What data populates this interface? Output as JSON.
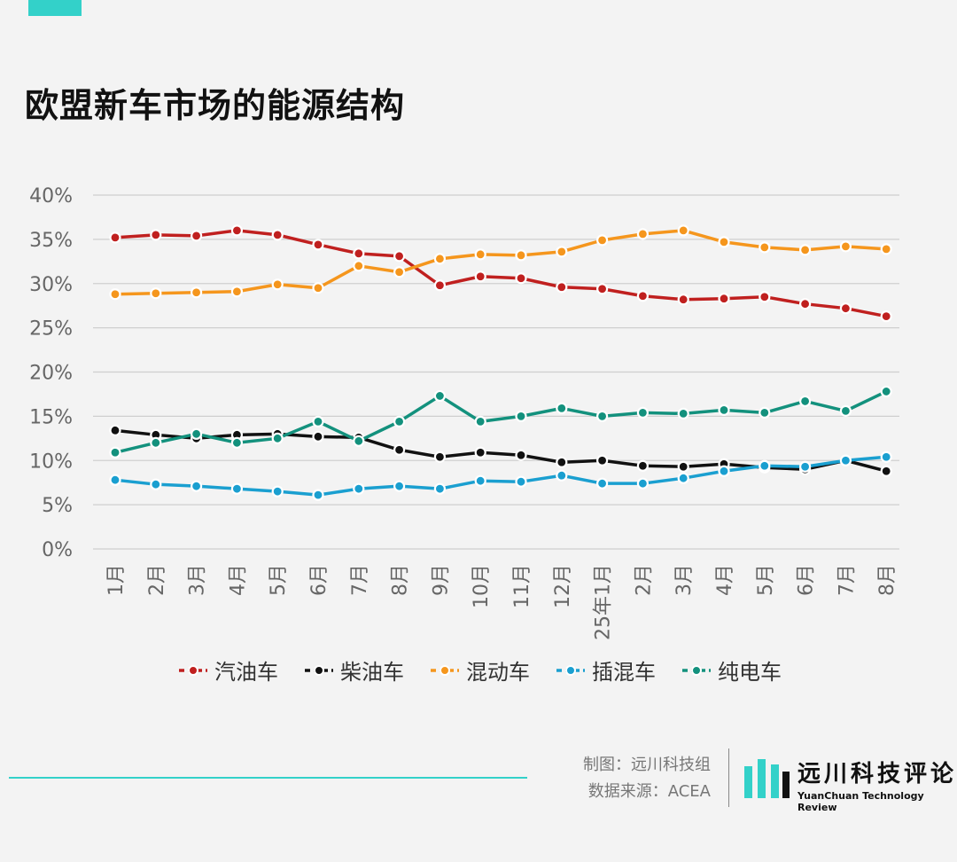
{
  "header": {
    "title": "欧盟新车市场的能源结构"
  },
  "credits": {
    "made_by": "制图：远川科技组",
    "source": "数据来源：ACEA"
  },
  "brand": {
    "name_cn": "远川科技评论",
    "name_en": "YuanChuan Technology Review",
    "accent": "#33d1c9"
  },
  "chart_data": {
    "type": "line",
    "title": "欧盟新车市场的能源结构",
    "categories": [
      "1月",
      "2月",
      "3月",
      "4月",
      "5月",
      "6月",
      "7月",
      "8月",
      "9月",
      "10月",
      "11月",
      "12月",
      "25年1月",
      "2月",
      "3月",
      "4月",
      "5月",
      "6月",
      "7月",
      "8月"
    ],
    "y_ticks": [
      "0%",
      "5%",
      "10%",
      "15%",
      "20%",
      "25%",
      "30%",
      "35%",
      "40%"
    ],
    "ylim": [
      0,
      40
    ],
    "grid": true,
    "legend_position": "bottom",
    "series": [
      {
        "name": "汽油车",
        "color": "#c0201f",
        "values": [
          35.2,
          35.5,
          35.4,
          36.0,
          35.5,
          34.4,
          33.4,
          33.1,
          29.8,
          30.8,
          30.6,
          29.6,
          29.4,
          28.6,
          28.2,
          28.3,
          28.5,
          27.7,
          27.2,
          26.3
        ]
      },
      {
        "name": "柴油车",
        "color": "#111111",
        "values": [
          13.4,
          12.9,
          12.5,
          12.9,
          13.0,
          12.7,
          12.6,
          11.2,
          10.4,
          10.9,
          10.6,
          9.8,
          10.0,
          9.4,
          9.3,
          9.6,
          9.2,
          9.0,
          10.0,
          8.8
        ]
      },
      {
        "name": "混动车",
        "color": "#f5961d",
        "values": [
          28.8,
          28.9,
          29.0,
          29.1,
          29.9,
          29.5,
          32.0,
          31.3,
          32.8,
          33.3,
          33.2,
          33.6,
          34.9,
          35.6,
          36.0,
          34.7,
          34.1,
          33.8,
          34.2,
          33.9
        ]
      },
      {
        "name": "插混车",
        "color": "#1a9fd0",
        "values": [
          7.8,
          7.3,
          7.1,
          6.8,
          6.5,
          6.1,
          6.8,
          7.1,
          6.8,
          7.7,
          7.6,
          8.3,
          7.4,
          7.4,
          8.0,
          8.8,
          9.4,
          9.3,
          10.0,
          10.4
        ]
      },
      {
        "name": "纯电车",
        "color": "#13917d",
        "values": [
          10.9,
          12.0,
          13.0,
          12.0,
          12.5,
          14.4,
          12.2,
          14.4,
          17.3,
          14.4,
          15.0,
          15.9,
          15.0,
          15.4,
          15.3,
          15.7,
          15.4,
          16.7,
          15.6,
          17.8
        ]
      }
    ]
  }
}
